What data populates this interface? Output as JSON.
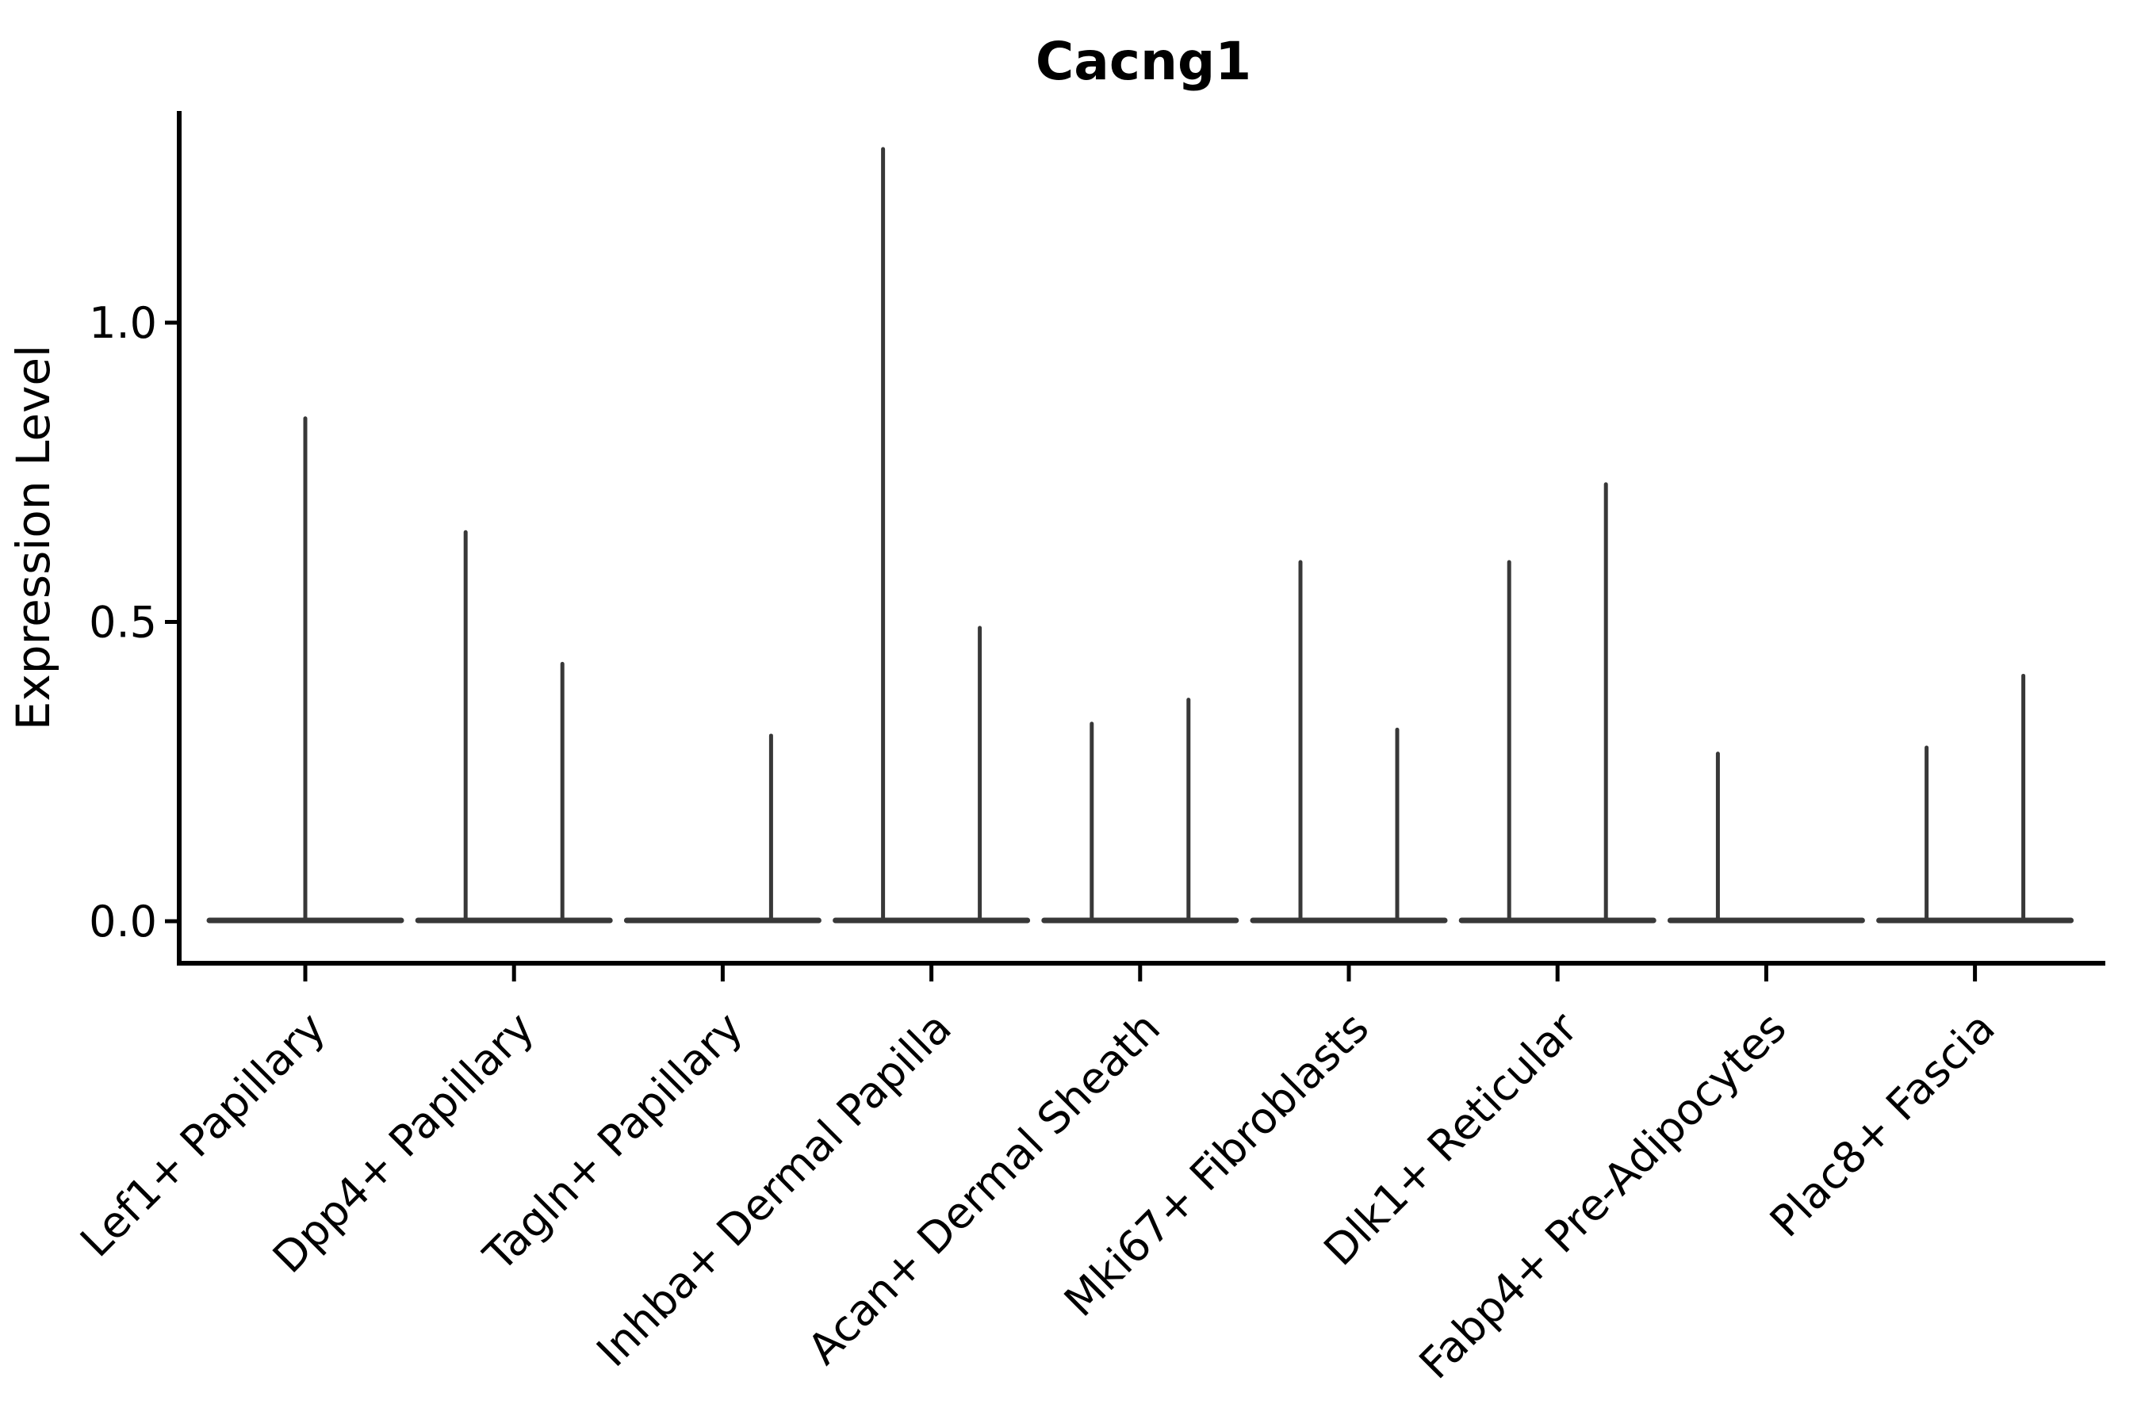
{
  "figure": {
    "title": "Cacng1",
    "y_axis": {
      "label": "Expression Level",
      "tick_labels": [
        "0.0",
        "0.5",
        "1.0"
      ],
      "tick_values": [
        0.0,
        0.5,
        1.0
      ]
    },
    "x_axis": {
      "categories": [
        "Lef1+ Papillary",
        "Dpp4+ Papillary",
        "Tagln+ Papillary",
        "Inhba+ Dermal Papilla",
        "Acan+ Dermal Sheath",
        "Mki67+ Fibroblasts",
        "Dlk1+ Reticular",
        "Fabp4+ Pre-Adipocytes",
        "Plac8+ Fascia"
      ]
    }
  },
  "chart_data": {
    "type": "violin",
    "title": "Cacng1",
    "xlabel": "",
    "ylabel": "Expression Level",
    "ylim": [
      0,
      1.35
    ],
    "yticks": [
      0.0,
      0.5,
      1.0
    ],
    "ytick_labels": [
      "0.0",
      "0.5",
      "1.0"
    ],
    "grid": false,
    "legend": "none",
    "background_color": "#ffffff",
    "axis_color": "#000000",
    "violin_color": "#383838",
    "description": "Flattened violins: nearly all cells at 0 expression; thin density spikes mark maximum expression per violin. Some categories contain two side-by-side violins (left/right), Lef1+ has a single centered violin.",
    "violins": [
      {
        "category": "Lef1+ Papillary",
        "spikes": [
          {
            "position": "center",
            "max_expression": 0.84
          }
        ]
      },
      {
        "category": "Dpp4+ Papillary",
        "spikes": [
          {
            "position": "left",
            "max_expression": 0.65
          },
          {
            "position": "right",
            "max_expression": 0.43
          }
        ]
      },
      {
        "category": "Tagln+ Papillary",
        "spikes": [
          {
            "position": "right",
            "max_expression": 0.31
          }
        ]
      },
      {
        "category": "Inhba+ Dermal Papilla",
        "spikes": [
          {
            "position": "left",
            "max_expression": 1.29
          },
          {
            "position": "right",
            "max_expression": 0.49
          }
        ]
      },
      {
        "category": "Acan+ Dermal Sheath",
        "spikes": [
          {
            "position": "left",
            "max_expression": 0.33
          },
          {
            "position": "right",
            "max_expression": 0.37
          }
        ]
      },
      {
        "category": "Mki67+ Fibroblasts",
        "spikes": [
          {
            "position": "left",
            "max_expression": 0.6
          },
          {
            "position": "right",
            "max_expression": 0.32
          }
        ]
      },
      {
        "category": "Dlk1+ Reticular",
        "spikes": [
          {
            "position": "left",
            "max_expression": 0.6
          },
          {
            "position": "right",
            "max_expression": 0.73
          }
        ]
      },
      {
        "category": "Fabp4+ Pre-Adipocytes",
        "spikes": [
          {
            "position": "left",
            "max_expression": 0.28
          }
        ]
      },
      {
        "category": "Plac8+ Fascia",
        "spikes": [
          {
            "position": "left",
            "max_expression": 0.29
          },
          {
            "position": "right",
            "max_expression": 0.41
          }
        ]
      }
    ]
  }
}
